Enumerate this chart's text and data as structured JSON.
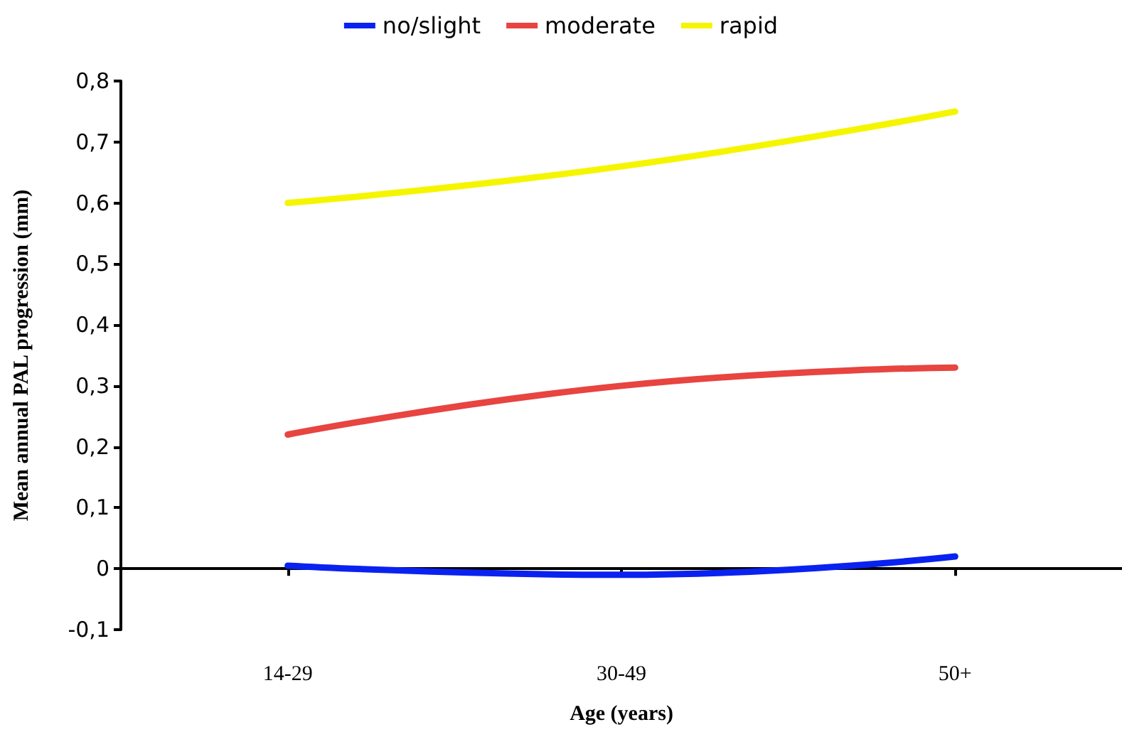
{
  "chart_data": {
    "type": "line",
    "xlabel": "Age (years)",
    "ylabel": "Mean annual PAL progression (mm)",
    "categories": [
      "14-29",
      "30-49",
      "50+"
    ],
    "series": [
      {
        "name": "no/slight",
        "color": "#0a22f0",
        "values": [
          0.005,
          -0.01,
          0.02
        ]
      },
      {
        "name": "moderate",
        "color": "#e84440",
        "values": [
          0.22,
          0.3,
          0.33
        ]
      },
      {
        "name": "rapid",
        "color": "#f5f500",
        "values": [
          0.6,
          0.66,
          0.75
        ]
      }
    ],
    "ylim": [
      -0.1,
      0.8
    ],
    "yticks": [
      {
        "value": -0.1,
        "label": "-0,1"
      },
      {
        "value": 0,
        "label": "0"
      },
      {
        "value": 0.1,
        "label": "0,1"
      },
      {
        "value": 0.2,
        "label": "0,2"
      },
      {
        "value": 0.3,
        "label": "0,3"
      },
      {
        "value": 0.4,
        "label": "0,4"
      },
      {
        "value": 0.5,
        "label": "0,5"
      },
      {
        "value": 0.6,
        "label": "0,6"
      },
      {
        "value": 0.7,
        "label": "0,7"
      },
      {
        "value": 0.8,
        "label": "0,8"
      }
    ],
    "legend": "top",
    "marker": "none",
    "line_style": "solid"
  }
}
